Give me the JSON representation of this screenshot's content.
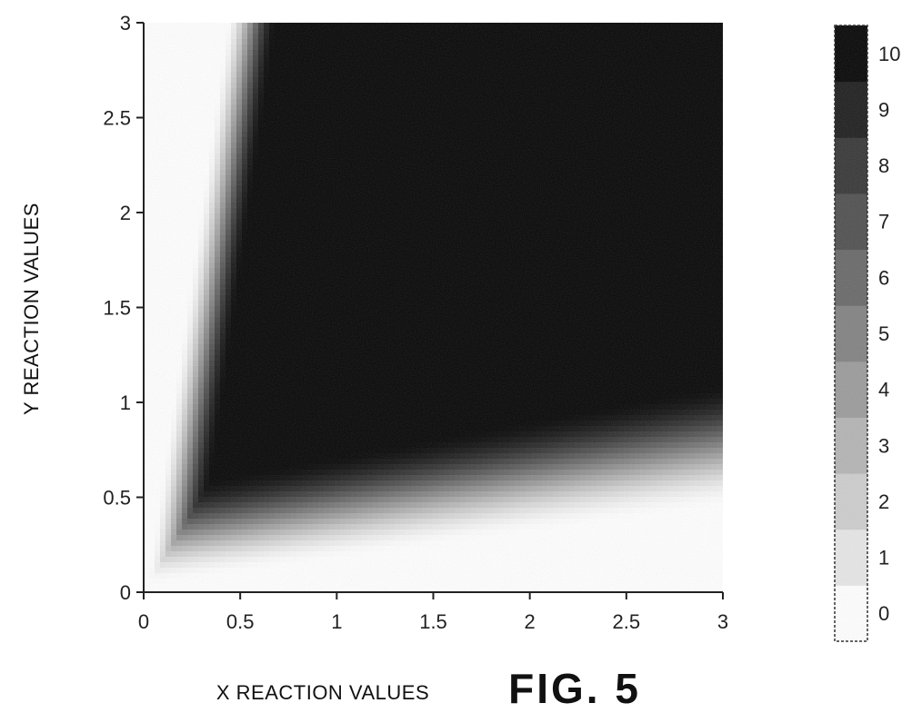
{
  "chart_data": {
    "type": "heatmap",
    "title": "",
    "xlabel": "X REACTION VALUES",
    "ylabel": "Y REACTION VALUES",
    "xlim": [
      0,
      3
    ],
    "ylim": [
      0,
      3
    ],
    "x_ticks": [
      "0",
      "0.5",
      "1",
      "1.5",
      "2",
      "2.5",
      "3"
    ],
    "y_ticks": [
      "0",
      "0.5",
      "1",
      "1.5",
      "2",
      "2.5",
      "3"
    ],
    "colorbar": {
      "min": 0,
      "max": 10,
      "ticks": [
        "0",
        "1",
        "2",
        "3",
        "4",
        "5",
        "6",
        "7",
        "8",
        "9",
        "10"
      ],
      "colormap": "grayscale (white = 0, black = 10)"
    },
    "grid": false,
    "regions": [
      {
        "description": "high values (~9-10) over most of the domain above the diagonal band",
        "approx_value": 10
      },
      {
        "description": "light (white) region top-left for x < ~0.4, y > ~0.9",
        "approx_value": 0
      },
      {
        "description": "light (white) region bottom-right below y ~ 0.1 + 0.13x",
        "approx_value": 0
      }
    ]
  },
  "caption": "FIG. 5"
}
